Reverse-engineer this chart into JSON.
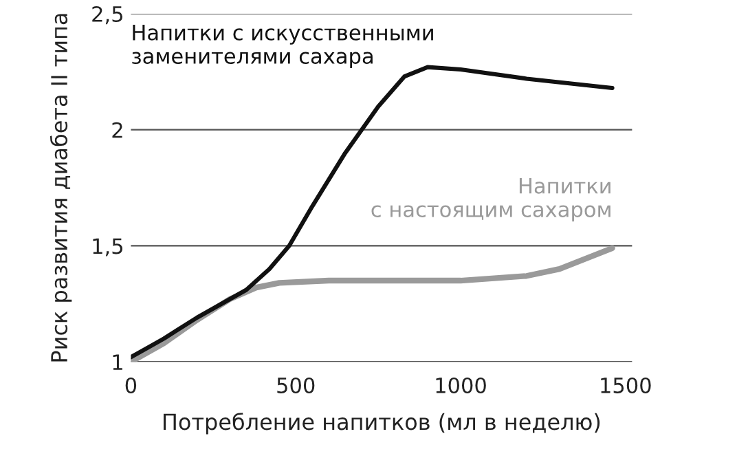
{
  "chart_data": {
    "type": "line",
    "xlabel": "Потребление напитков (мл в неделю)",
    "ylabel": "Риск развития диабета II типа",
    "xlim": [
      0,
      1520
    ],
    "xticks": [
      0,
      500,
      1000,
      1500
    ],
    "ylim": [
      1,
      2.5
    ],
    "yticks": [
      {
        "value": 1,
        "label": "1"
      },
      {
        "value": 1.5,
        "label": "1,5"
      },
      {
        "value": 2,
        "label": "2"
      },
      {
        "value": 2.5,
        "label": "2,5"
      }
    ],
    "grid": "y",
    "legend": false,
    "marker": "none",
    "line_style": "solid",
    "series": [
      {
        "name": "Напитки\nс настоящим сахаром",
        "color": "#9a9a9a",
        "x": [
          0,
          100,
          200,
          300,
          380,
          450,
          600,
          1000,
          1200,
          1300,
          1460
        ],
        "values": [
          1.0,
          1.08,
          1.18,
          1.27,
          1.32,
          1.34,
          1.35,
          1.35,
          1.37,
          1.4,
          1.49
        ]
      },
      {
        "name": "Напитки с искусственными\nзаменителями сахара",
        "color": "#111111",
        "x": [
          0,
          100,
          200,
          300,
          350,
          420,
          480,
          550,
          650,
          750,
          830,
          900,
          1000,
          1200,
          1460
        ],
        "values": [
          1.02,
          1.1,
          1.19,
          1.27,
          1.31,
          1.4,
          1.5,
          1.67,
          1.9,
          2.1,
          2.23,
          2.27,
          2.26,
          2.22,
          2.18
        ]
      }
    ]
  }
}
